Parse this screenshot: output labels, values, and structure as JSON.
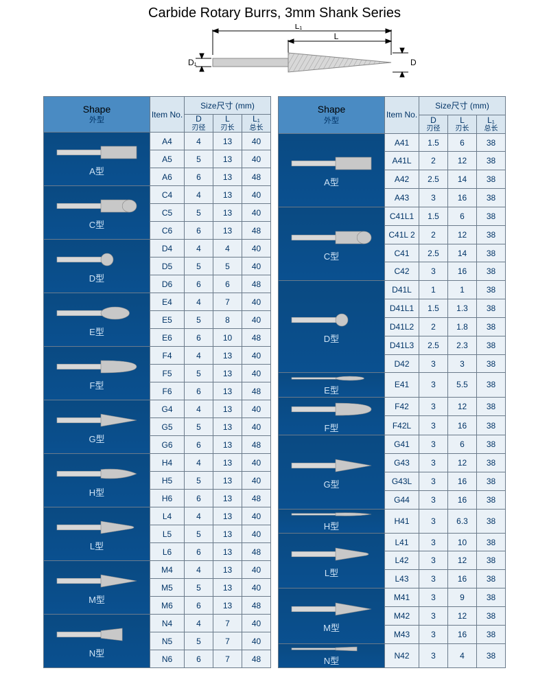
{
  "title": "Carbide Rotary Burrs, 3mm Shank Series",
  "diagram": {
    "L1": "L₁",
    "L": "L",
    "D1": "D₁",
    "D": "D"
  },
  "headers": {
    "shape": "Shape",
    "shape_sub": "外型",
    "item": "Item No.",
    "item_sub": "",
    "size": "Size尺寸  (mm)",
    "D": "D",
    "D_sub": "刃径",
    "L": "L",
    "L_sub": "刃长",
    "L1": "L₁",
    "L1_sub": "总长"
  },
  "left_groups": [
    {
      "label": "A型",
      "shape": "cyl",
      "rows": [
        [
          "A4",
          "4",
          "13",
          "40"
        ],
        [
          "A5",
          "5",
          "13",
          "40"
        ],
        [
          "A6",
          "6",
          "13",
          "48"
        ]
      ]
    },
    {
      "label": "C型",
      "shape": "cylround",
      "rows": [
        [
          "C4",
          "4",
          "13",
          "40"
        ],
        [
          "C5",
          "5",
          "13",
          "40"
        ],
        [
          "C6",
          "6",
          "13",
          "48"
        ]
      ]
    },
    {
      "label": "D型",
      "shape": "ball",
      "rows": [
        [
          "D4",
          "4",
          "4",
          "40"
        ],
        [
          "D5",
          "5",
          "5",
          "40"
        ],
        [
          "D6",
          "6",
          "6",
          "48"
        ]
      ]
    },
    {
      "label": "E型",
      "shape": "oval",
      "rows": [
        [
          "E4",
          "4",
          "7",
          "40"
        ],
        [
          "E5",
          "5",
          "8",
          "40"
        ],
        [
          "E6",
          "6",
          "10",
          "48"
        ]
      ]
    },
    {
      "label": "F型",
      "shape": "tree-r",
      "rows": [
        [
          "F4",
          "4",
          "13",
          "40"
        ],
        [
          "F5",
          "5",
          "13",
          "40"
        ],
        [
          "F6",
          "6",
          "13",
          "48"
        ]
      ]
    },
    {
      "label": "G型",
      "shape": "tree-p",
      "rows": [
        [
          "G4",
          "4",
          "13",
          "40"
        ],
        [
          "G5",
          "5",
          "13",
          "40"
        ],
        [
          "G6",
          "6",
          "13",
          "48"
        ]
      ]
    },
    {
      "label": "H型",
      "shape": "flame",
      "rows": [
        [
          "H4",
          "4",
          "13",
          "40"
        ],
        [
          "H5",
          "5",
          "13",
          "40"
        ],
        [
          "H6",
          "6",
          "13",
          "48"
        ]
      ]
    },
    {
      "label": "L型",
      "shape": "cone-r",
      "rows": [
        [
          "L4",
          "4",
          "13",
          "40"
        ],
        [
          "L5",
          "5",
          "13",
          "40"
        ],
        [
          "L6",
          "6",
          "13",
          "48"
        ]
      ]
    },
    {
      "label": "M型",
      "shape": "cone-p",
      "rows": [
        [
          "M4",
          "4",
          "13",
          "40"
        ],
        [
          "M5",
          "5",
          "13",
          "40"
        ],
        [
          "M6",
          "6",
          "13",
          "48"
        ]
      ]
    },
    {
      "label": "N型",
      "shape": "invcone",
      "rows": [
        [
          "N4",
          "4",
          "7",
          "40"
        ],
        [
          "N5",
          "5",
          "7",
          "40"
        ],
        [
          "N6",
          "6",
          "7",
          "48"
        ]
      ]
    }
  ],
  "right_groups": [
    {
      "label": "A型",
      "shape": "cyl",
      "rows": [
        [
          "A41",
          "1.5",
          "6",
          "38"
        ],
        [
          "A41L",
          "2",
          "12",
          "38"
        ],
        [
          "A42",
          "2.5",
          "14",
          "38"
        ],
        [
          "A43",
          "3",
          "16",
          "38"
        ]
      ]
    },
    {
      "label": "C型",
      "shape": "cylround",
      "rows": [
        [
          "C41L1",
          "1.5",
          "6",
          "38"
        ],
        [
          "C41L 2",
          "2",
          "12",
          "38"
        ],
        [
          "C41",
          "2.5",
          "14",
          "38"
        ],
        [
          "C42",
          "3",
          "16",
          "38"
        ]
      ]
    },
    {
      "label": "D型",
      "shape": "ball",
      "rows": [
        [
          "D41L",
          "1",
          "1",
          "38"
        ],
        [
          "D41L1",
          "1.5",
          "1.3",
          "38"
        ],
        [
          "D41L2",
          "2",
          "1.8",
          "38"
        ],
        [
          "D41L3",
          "2.5",
          "2.3",
          "38"
        ],
        [
          "D42",
          "3",
          "3",
          "38"
        ]
      ]
    },
    {
      "label": "E型",
      "shape": "oval",
      "rows": [
        [
          "E41",
          "3",
          "5.5",
          "38"
        ]
      ]
    },
    {
      "label": "F型",
      "shape": "tree-r",
      "rows": [
        [
          "F42",
          "3",
          "12",
          "38"
        ],
        [
          "F42L",
          "3",
          "16",
          "38"
        ]
      ]
    },
    {
      "label": "G型",
      "shape": "tree-p",
      "rows": [
        [
          "G41",
          "3",
          "6",
          "38"
        ],
        [
          "G43",
          "3",
          "12",
          "38"
        ],
        [
          "G43L",
          "3",
          "16",
          "38"
        ],
        [
          "G44",
          "3",
          "16",
          "38"
        ]
      ]
    },
    {
      "label": "H型",
      "shape": "flame",
      "rows": [
        [
          "H41",
          "3",
          "6.3",
          "38"
        ]
      ]
    },
    {
      "label": "L型",
      "shape": "cone-r",
      "rows": [
        [
          "L41",
          "3",
          "10",
          "38"
        ],
        [
          "L42",
          "3",
          "12",
          "38"
        ],
        [
          "L43",
          "3",
          "16",
          "38"
        ]
      ]
    },
    {
      "label": "M型",
      "shape": "cone-p",
      "rows": [
        [
          "M41",
          "3",
          "9",
          "38"
        ],
        [
          "M42",
          "3",
          "12",
          "38"
        ],
        [
          "M43",
          "3",
          "16",
          "38"
        ]
      ]
    },
    {
      "label": "N型",
      "shape": "invcone",
      "rows": [
        [
          "N42",
          "3",
          "4",
          "38"
        ]
      ]
    }
  ],
  "colors": {
    "shape_bg": "#0a4d88",
    "header_blue": "#4a8bc3",
    "header_light": "#d9e6f0",
    "cell_bg": "#eaf1f7",
    "border": "#6a7a8a",
    "text": "#003366"
  }
}
